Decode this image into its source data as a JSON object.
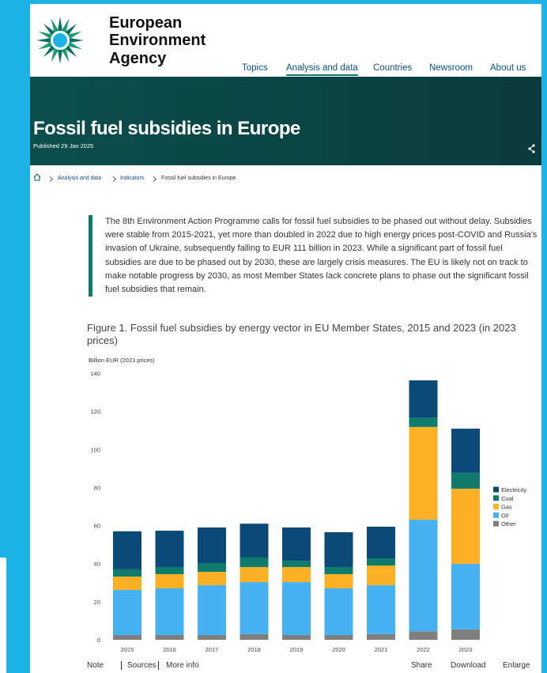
{
  "header": {
    "agency": [
      "European",
      "Environment",
      "Agency"
    ],
    "nav": [
      "Topics",
      "Analysis and data",
      "Countries",
      "Newsroom",
      "About us"
    ]
  },
  "hero": {
    "title": "Fossil fuel subsidies in Europe",
    "published": "Published 29 Jan 2025"
  },
  "breadcrumb": [
    "Analysis and data",
    "Indicators",
    "Fossil fuel subsidies in Europe"
  ],
  "summary": "The 8th Environment Action Programme calls for fossil fuel subsidies to be phased out without delay. Subsidies were stable from 2015-2021, yet more than doubled in 2022 due to high energy prices post-COVID and Russia's invasion of Ukraine, subsequently falling to EUR 111 billion in 2023. While a significant part of fossil fuel subsidies are due to be phased out by 2030, these are largely crisis measures. The EU is likely not on track to make notable progress by 2030, as most Member States lack concrete plans to phase out the significant fossil fuel subsidies that remain.",
  "figure": {
    "title": "Figure 1. Fossil fuel subsidies by energy vector in EU Member States, 2015 and 2023 (in 2023 prices)"
  },
  "chart_data": {
    "type": "bar",
    "stacked": true,
    "y_label": "Billion EUR (2023 prices)",
    "categories": [
      "2015",
      "2016",
      "2017",
      "2018",
      "2019",
      "2020",
      "2021",
      "2022",
      "2023"
    ],
    "series": [
      {
        "name": "Electricity",
        "color": "#0b4a78",
        "values": [
          20,
          19.1,
          18.7,
          17.8,
          17.5,
          18.3,
          16.6,
          19.6,
          23.2
        ]
      },
      {
        "name": "Coal",
        "color": "#0e7b6c",
        "values": [
          3.8,
          3.7,
          4.6,
          5,
          3.3,
          3.7,
          3.8,
          4.9,
          8.3
        ]
      },
      {
        "name": "Gas",
        "color": "#fcb024",
        "values": [
          7,
          7.5,
          7,
          7.9,
          7.9,
          7.5,
          10.3,
          48.7,
          39.5
        ]
      },
      {
        "name": "Oil",
        "color": "#47b2f2",
        "values": [
          23.7,
          24.5,
          26.2,
          27.3,
          27.8,
          24.5,
          25.7,
          58.6,
          34.4
        ]
      },
      {
        "name": "Other",
        "color": "#7f7f7f",
        "values": [
          2.5,
          2.5,
          2.5,
          3,
          2.5,
          2.5,
          3,
          4.5,
          5.5
        ]
      }
    ],
    "ylim": [
      0,
      140
    ],
    "yticks": [
      0,
      20,
      40,
      60,
      80,
      100,
      120,
      140
    ],
    "grid": false,
    "legend": "right"
  },
  "footer": {
    "left": [
      "Note",
      "Sources",
      "More info"
    ],
    "right": [
      "Share",
      "Download",
      "Enlarge"
    ]
  }
}
